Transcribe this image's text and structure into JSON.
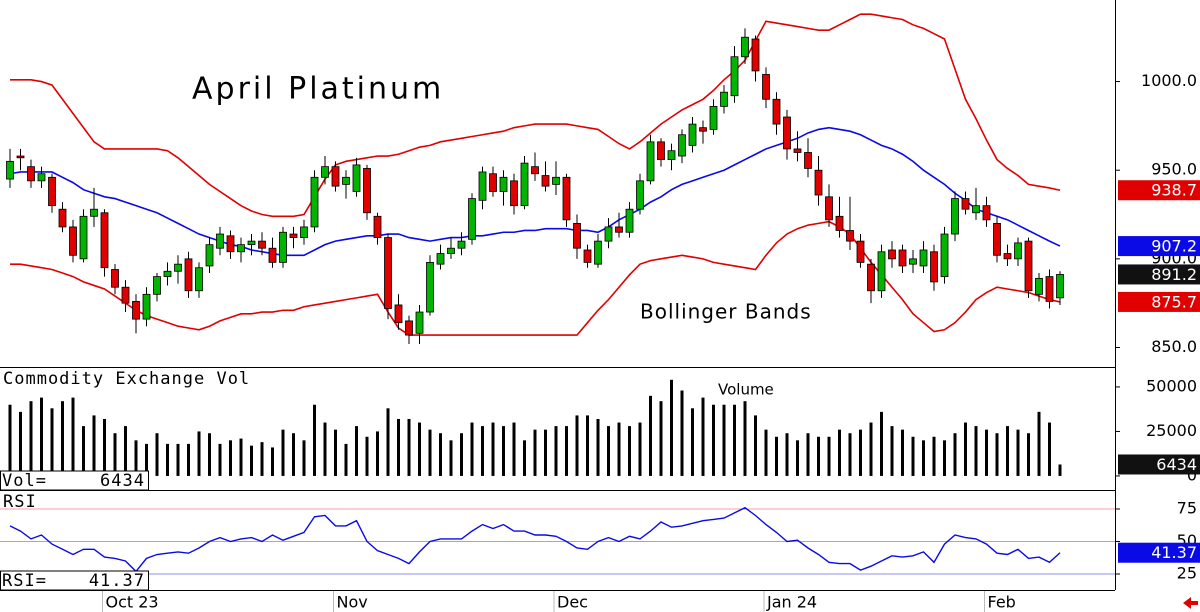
{
  "chart_data": [
    {
      "type": "candlestick",
      "title": "April Platinum",
      "annotation": "Bollinger Bands",
      "categories": [
        null,
        null,
        null,
        null,
        null,
        null,
        null,
        null,
        null,
        "Oct 23",
        null,
        null,
        null,
        null,
        null,
        null,
        null,
        null,
        null,
        null,
        null,
        null,
        null,
        null,
        null,
        null,
        null,
        null,
        null,
        null,
        null,
        "Nov",
        null,
        null,
        null,
        null,
        null,
        null,
        null,
        null,
        null,
        null,
        null,
        null,
        null,
        null,
        null,
        null,
        null,
        null,
        null,
        null,
        "Dec",
        null,
        null,
        null,
        null,
        null,
        null,
        null,
        null,
        null,
        null,
        null,
        null,
        null,
        null,
        null,
        null,
        null,
        null,
        null,
        "Jan 24",
        null,
        null,
        null,
        null,
        null,
        null,
        null,
        null,
        null,
        null,
        null,
        null,
        null,
        null,
        null,
        null,
        null,
        null,
        null,
        null,
        "Feb",
        null,
        null,
        null,
        null,
        null,
        null,
        null
      ],
      "ohlc": [
        [
          945,
          962,
          940,
          955
        ],
        [
          958,
          962,
          950,
          957
        ],
        [
          952,
          956,
          940,
          944
        ],
        [
          944,
          952,
          940,
          948
        ],
        [
          946,
          948,
          926,
          930
        ],
        [
          928,
          932,
          915,
          918
        ],
        [
          918,
          922,
          898,
          902
        ],
        [
          900,
          928,
          898,
          924
        ],
        [
          924,
          940,
          918,
          928
        ],
        [
          926,
          928,
          890,
          895
        ],
        [
          894,
          897,
          880,
          884
        ],
        [
          884,
          888,
          870,
          875
        ],
        [
          876,
          880,
          858,
          866
        ],
        [
          866,
          884,
          862,
          880
        ],
        [
          880,
          892,
          876,
          890
        ],
        [
          890,
          898,
          885,
          893
        ],
        [
          893,
          902,
          886,
          897
        ],
        [
          900,
          904,
          878,
          882
        ],
        [
          882,
          898,
          878,
          895
        ],
        [
          896,
          912,
          892,
          908
        ],
        [
          906,
          918,
          902,
          914
        ],
        [
          913,
          916,
          900,
          904
        ],
        [
          904,
          912,
          898,
          908
        ],
        [
          908,
          914,
          902,
          910
        ],
        [
          910,
          915,
          902,
          906
        ],
        [
          906,
          912,
          895,
          898
        ],
        [
          898,
          918,
          895,
          915
        ],
        [
          914,
          918,
          906,
          912
        ],
        [
          912,
          922,
          908,
          918
        ],
        [
          918,
          950,
          915,
          946
        ],
        [
          946,
          958,
          942,
          952
        ],
        [
          952,
          955,
          938,
          941
        ],
        [
          942,
          950,
          934,
          946
        ],
        [
          938,
          957,
          935,
          953
        ],
        [
          951,
          953,
          922,
          926
        ],
        [
          924,
          926,
          908,
          912
        ],
        [
          912,
          914,
          866,
          872
        ],
        [
          874,
          880,
          860,
          864
        ],
        [
          865,
          868,
          852,
          857
        ],
        [
          858,
          874,
          852,
          870
        ],
        [
          870,
          902,
          868,
          898
        ],
        [
          897,
          908,
          894,
          903
        ],
        [
          903,
          912,
          900,
          906
        ],
        [
          906,
          915,
          902,
          910
        ],
        [
          911,
          937,
          908,
          934
        ],
        [
          933,
          952,
          928,
          949
        ],
        [
          948,
          952,
          935,
          938
        ],
        [
          938,
          950,
          930,
          946
        ],
        [
          944,
          948,
          925,
          930
        ],
        [
          930,
          958,
          928,
          954
        ],
        [
          952,
          960,
          944,
          948
        ],
        [
          947,
          955,
          938,
          941
        ],
        [
          942,
          955,
          936,
          946
        ],
        [
          946,
          948,
          918,
          922
        ],
        [
          920,
          925,
          900,
          906
        ],
        [
          905,
          908,
          895,
          898
        ],
        [
          897,
          914,
          895,
          910
        ],
        [
          910,
          923,
          906,
          918
        ],
        [
          918,
          926,
          912,
          915
        ],
        [
          915,
          932,
          912,
          928
        ],
        [
          928,
          948,
          925,
          944
        ],
        [
          944,
          970,
          942,
          966
        ],
        [
          966,
          968,
          952,
          956
        ],
        [
          956,
          965,
          950,
          961
        ],
        [
          958,
          973,
          954,
          970
        ],
        [
          964,
          980,
          960,
          976
        ],
        [
          974,
          978,
          965,
          972
        ],
        [
          973,
          990,
          970,
          986
        ],
        [
          986,
          998,
          982,
          994
        ],
        [
          992,
          1020,
          988,
          1014
        ],
        [
          1014,
          1030,
          1010,
          1025
        ],
        [
          1024,
          1026,
          1000,
          1006
        ],
        [
          1004,
          1008,
          985,
          990
        ],
        [
          990,
          994,
          970,
          976
        ],
        [
          980,
          984,
          956,
          962
        ],
        [
          962,
          972,
          955,
          960
        ],
        [
          960,
          968,
          946,
          951
        ],
        [
          950,
          958,
          930,
          936
        ],
        [
          935,
          942,
          918,
          922
        ],
        [
          924,
          935,
          912,
          916
        ],
        [
          916,
          935,
          905,
          910
        ],
        [
          910,
          914,
          895,
          898
        ],
        [
          897,
          900,
          875,
          882
        ],
        [
          882,
          908,
          878,
          904
        ],
        [
          905,
          910,
          895,
          900
        ],
        [
          905,
          908,
          892,
          896
        ],
        [
          897,
          905,
          892,
          900
        ],
        [
          896,
          910,
          892,
          905
        ],
        [
          904,
          908,
          882,
          887
        ],
        [
          890,
          918,
          886,
          914
        ],
        [
          914,
          938,
          910,
          934
        ],
        [
          934,
          938,
          925,
          928
        ],
        [
          926,
          940,
          922,
          930
        ],
        [
          930,
          935,
          918,
          922
        ],
        [
          920,
          924,
          898,
          902
        ],
        [
          903,
          908,
          896,
          900
        ],
        [
          900,
          912,
          896,
          909
        ],
        [
          910,
          912,
          878,
          882
        ],
        [
          880,
          892,
          876,
          889
        ],
        [
          890,
          894,
          872,
          876
        ],
        [
          878,
          893,
          874,
          891.2
        ]
      ],
      "up_color": "#00b400",
      "down_color": "#e00000",
      "close_color": "#111111",
      "bands": [
        {
          "color": "#e00000",
          "values": [
            1001,
            1001,
            1001,
            1000,
            998,
            990,
            982,
            974,
            966,
            962,
            962,
            962,
            962,
            962,
            962,
            961,
            957,
            952,
            947,
            942,
            938,
            934,
            930,
            927,
            925,
            924,
            924,
            924,
            925,
            935,
            945,
            953,
            955,
            956,
            957,
            958,
            958,
            959,
            961,
            963,
            964,
            966,
            967,
            968,
            969,
            970,
            971,
            972,
            974,
            975,
            976,
            976,
            976,
            976,
            975,
            974,
            973,
            969,
            965,
            962,
            966,
            971,
            976,
            980,
            984,
            987,
            990,
            995,
            1001,
            1006,
            1012,
            1023,
            1034,
            1033,
            1032,
            1031,
            1030,
            1029,
            1029,
            1032,
            1035,
            1038,
            1038,
            1037,
            1036,
            1035,
            1032,
            1030,
            1027,
            1024,
            1007,
            990,
            979,
            967,
            956,
            951,
            947,
            942,
            941,
            940,
            938.7
          ]
        },
        {
          "color": "#0a0ae6",
          "values": [
            948,
            949,
            949,
            949,
            949,
            946,
            943,
            939,
            937,
            935,
            934,
            932,
            930,
            928,
            926,
            923,
            920,
            917,
            914,
            912,
            910,
            908,
            907,
            905,
            904,
            903,
            902,
            902,
            902,
            905,
            908,
            910,
            911,
            912,
            913,
            913,
            914,
            914,
            912,
            911,
            910,
            911,
            912,
            912,
            913,
            913,
            914,
            915,
            915,
            916,
            916,
            917,
            917,
            917,
            916,
            916,
            915,
            918,
            922,
            925,
            928,
            932,
            935,
            939,
            942,
            944,
            946,
            948,
            950,
            953,
            956,
            959,
            962,
            964,
            966,
            968,
            971,
            973,
            974,
            973,
            972,
            970,
            967,
            964,
            962,
            959,
            955,
            950,
            946,
            942,
            937,
            933,
            928,
            926,
            924,
            922,
            919,
            916,
            913,
            910,
            907.2
          ]
        },
        {
          "color": "#e00000",
          "values": [
            897,
            897,
            896,
            895,
            894,
            892,
            890,
            887,
            885,
            883,
            879,
            875,
            871,
            868,
            866,
            864,
            862,
            861,
            860,
            862,
            865,
            867,
            869,
            869,
            870,
            870,
            871,
            871,
            873,
            874,
            875,
            876,
            877,
            878,
            879,
            880,
            870,
            861,
            857,
            857,
            857,
            857,
            857,
            857,
            857,
            857,
            857,
            857,
            857,
            857,
            857,
            857,
            857,
            857,
            857,
            864,
            871,
            877,
            884,
            891,
            897,
            899,
            900,
            901,
            902,
            901,
            900,
            898,
            897,
            896,
            895,
            894,
            902,
            909,
            914,
            917,
            919,
            920,
            921,
            918,
            914,
            906,
            898,
            891,
            884,
            877,
            869,
            864,
            859,
            860,
            864,
            870,
            877,
            881,
            884,
            883,
            882,
            881,
            879,
            877,
            875.7
          ]
        }
      ],
      "ylim": [
        839,
        1046
      ],
      "yticks": [
        {
          "value": 1000,
          "label": "1000.0"
        },
        {
          "value": 950,
          "label": "950.0"
        },
        {
          "value": 900,
          "label": "900.0"
        },
        {
          "value": 850,
          "label": "850.0"
        }
      ]
    },
    {
      "type": "bar",
      "title": "Commodity Exchange Vol",
      "label": "Volume",
      "readout_label": "Vol=",
      "color": "#000000",
      "values": [
        40000,
        36000,
        42000,
        44000,
        38000,
        42000,
        44000,
        28000,
        34000,
        32000,
        24000,
        28000,
        20000,
        18000,
        24000,
        18000,
        18000,
        18000,
        25000,
        24000,
        18000,
        20000,
        21000,
        17000,
        19000,
        16000,
        26000,
        24000,
        20000,
        40000,
        30000,
        26000,
        18000,
        28000,
        22000,
        25000,
        38000,
        32000,
        32000,
        30000,
        26000,
        24000,
        20000,
        24000,
        30000,
        28000,
        30000,
        28000,
        30000,
        20000,
        26000,
        26000,
        28000,
        28000,
        34000,
        34000,
        32000,
        28000,
        30000,
        28000,
        30000,
        45000,
        42000,
        54000,
        48000,
        38000,
        44000,
        40000,
        40000,
        40000,
        42000,
        34000,
        26000,
        22000,
        24000,
        20000,
        24000,
        22000,
        22000,
        26000,
        24000,
        26000,
        30000,
        36000,
        28000,
        26000,
        22000,
        20000,
        22000,
        20000,
        24000,
        30000,
        28000,
        26000,
        24000,
        28000,
        26000,
        24000,
        36000,
        30000,
        6434
      ],
      "ylim": [
        -7900,
        61200
      ],
      "yticks": [
        50000,
        25000,
        0
      ]
    },
    {
      "type": "line",
      "title": "RSI",
      "readout_label": "RSI=",
      "color": "#0a0ae6",
      "values": [
        62,
        58,
        52,
        55,
        48,
        44,
        40,
        44,
        44,
        38,
        37,
        35,
        27,
        37,
        40,
        41,
        42,
        41,
        45,
        50,
        53,
        50,
        52,
        53,
        50,
        55,
        51,
        54,
        57,
        69,
        70,
        62,
        62,
        66,
        50,
        43,
        40,
        37,
        33,
        42,
        50,
        52,
        52,
        52,
        58,
        63,
        60,
        63,
        58,
        58,
        55,
        55,
        54,
        50,
        45,
        44,
        50,
        53,
        50,
        54,
        52,
        58,
        65,
        61,
        62,
        64,
        66,
        67,
        68,
        72,
        76,
        70,
        63,
        57,
        50,
        51,
        45,
        40,
        34,
        33,
        33,
        28,
        31,
        35,
        39,
        38,
        39,
        42,
        34,
        48,
        55,
        53,
        52,
        48,
        41,
        40,
        44,
        37,
        38,
        34,
        41.37
      ],
      "ylim": [
        12.7,
        89.6
      ],
      "yticks": [
        75,
        50,
        25
      ],
      "grid_colors": [
        "#f4a0a0",
        "#aaaaaa",
        "#9090f0"
      ]
    }
  ]
}
